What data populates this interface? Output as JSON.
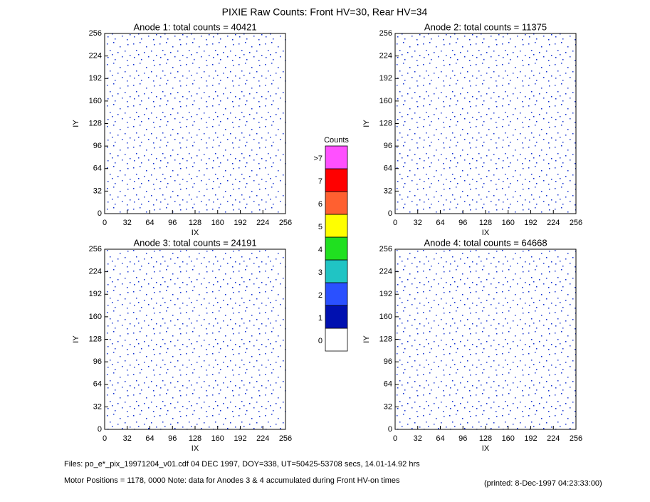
{
  "header": {
    "title": "PIXIE Raw Counts:  Front HV=30, Rear HV=34"
  },
  "chart_data": [
    {
      "type": "heatmap",
      "title": "Anode 1: total counts = 40421",
      "xlabel": "IX",
      "ylabel": "IY",
      "xlim": [
        0,
        256
      ],
      "ylim": [
        0,
        256
      ],
      "xticks": [
        0,
        32,
        64,
        96,
        128,
        160,
        192,
        224,
        256
      ],
      "yticks": [
        0,
        32,
        64,
        96,
        128,
        160,
        192,
        224,
        256
      ]
    },
    {
      "type": "heatmap",
      "title": "Anode 2: total counts = 11375",
      "xlabel": "IX",
      "ylabel": "IY",
      "xlim": [
        0,
        256
      ],
      "ylim": [
        0,
        256
      ],
      "xticks": [
        0,
        32,
        64,
        96,
        128,
        160,
        192,
        224,
        256
      ],
      "yticks": [
        0,
        32,
        64,
        96,
        128,
        160,
        192,
        224,
        256
      ]
    },
    {
      "type": "heatmap",
      "title": "Anode 3: total counts = 24191",
      "xlabel": "IX",
      "ylabel": "IY",
      "xlim": [
        0,
        256
      ],
      "ylim": [
        0,
        256
      ],
      "xticks": [
        0,
        32,
        64,
        96,
        128,
        160,
        192,
        224,
        256
      ],
      "yticks": [
        0,
        32,
        64,
        96,
        128,
        160,
        192,
        224,
        256
      ]
    },
    {
      "type": "heatmap",
      "title": "Anode 4: total counts = 64668",
      "xlabel": "IX",
      "ylabel": "IY",
      "xlim": [
        0,
        256
      ],
      "ylim": [
        0,
        256
      ],
      "xticks": [
        0,
        32,
        64,
        96,
        128,
        160,
        192,
        224,
        256
      ],
      "yticks": [
        0,
        32,
        64,
        96,
        128,
        160,
        192,
        224,
        256
      ]
    }
  ],
  "colorbar": {
    "title": "Counts",
    "labels": [
      "0",
      "1",
      "2",
      "3",
      "4",
      "5",
      "6",
      "7",
      ">7"
    ],
    "colors": [
      "#ffffff",
      "#0010b0",
      "#2a50ff",
      "#20c4c4",
      "#20e020",
      "#ffff00",
      "#ff6030",
      "#ff0000",
      "#ff50ff"
    ]
  },
  "footer": {
    "files": "Files: po_e*_pix_19971204_v01.cdf    04 DEC 1997, DOY=338, UT=50425-53708 secs, 14.01-14.92 hrs",
    "motor": "Motor Positions = 1178, 0000   Note: data for Anodes 3 & 4 accumulated during Front HV-on times",
    "printed": "(printed:  8-Dec-1997 04:23:33:00)"
  }
}
